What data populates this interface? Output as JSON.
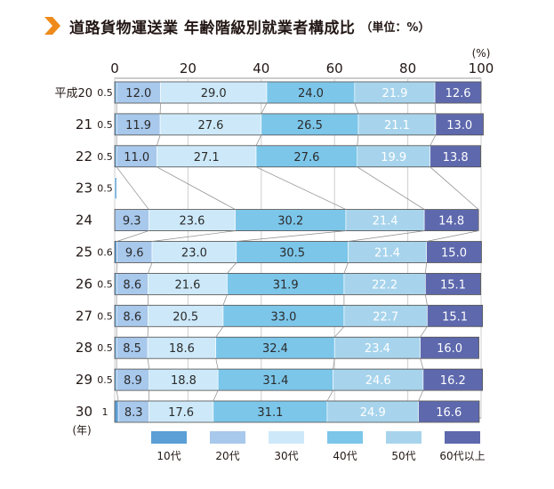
{
  "header": {
    "title": "道路貨物運送業 年齢階級別就業者構成比",
    "subtitle": "（単位：%）"
  },
  "colors": {
    "accent": "#ee8a1a",
    "segments": [
      "#5b9fd6",
      "#a8c8ec",
      "#cde9f9",
      "#7cc6ea",
      "#a7d4ec",
      "#5d68ad"
    ],
    "row_label_light": [
      "#2b2b2b",
      "#2b2b2b",
      "#2b2b2b",
      "#2b2b2b",
      "#ffffff",
      "#ffffff"
    ]
  },
  "chart_data": {
    "type": "bar",
    "orientation": "horizontal",
    "stacked": true,
    "title": "道路貨物運送業 年齢階級別就業者構成比",
    "unit_label": "（単位：%）",
    "axis_unit": "(%)",
    "year_unit": "(年)",
    "xlim": [
      0,
      100
    ],
    "xticks": [
      0,
      20,
      40,
      60,
      80,
      100
    ],
    "categories": [
      "平成20",
      "21",
      "22",
      "23",
      "24",
      "25",
      "26",
      "27",
      "28",
      "29",
      "30"
    ],
    "series": [
      {
        "name": "10代",
        "values": [
          0.5,
          0.5,
          0.5,
          0.5,
          null,
          0.6,
          0.5,
          0.5,
          0.5,
          0.5,
          1
        ]
      },
      {
        "name": "20代",
        "values": [
          12.0,
          11.9,
          11.0,
          null,
          9.3,
          9.6,
          8.6,
          8.6,
          8.5,
          8.9,
          8.3
        ]
      },
      {
        "name": "30代",
        "values": [
          29.0,
          27.6,
          27.1,
          null,
          23.6,
          23.0,
          21.6,
          20.5,
          18.6,
          18.8,
          17.6
        ]
      },
      {
        "name": "40代",
        "values": [
          24.0,
          26.5,
          27.6,
          null,
          30.2,
          30.5,
          31.9,
          33.0,
          32.4,
          31.4,
          31.1
        ]
      },
      {
        "name": "50代",
        "values": [
          21.9,
          21.1,
          19.9,
          null,
          21.4,
          21.4,
          22.2,
          22.7,
          23.4,
          24.6,
          24.9
        ]
      },
      {
        "name": "60代以上",
        "values": [
          12.6,
          13.0,
          13.8,
          null,
          14.8,
          15.0,
          15.1,
          15.1,
          16.0,
          16.2,
          16.6
        ]
      }
    ],
    "value_labels": [
      [
        "0.5",
        "12.0",
        "29.0",
        "24.0",
        "21.9",
        "12.6"
      ],
      [
        "0.5",
        "11.9",
        "27.6",
        "26.5",
        "21.1",
        "13.0"
      ],
      [
        "0.5",
        "11.0",
        "27.1",
        "27.6",
        "19.9",
        "13.8"
      ],
      [
        "0.5",
        "",
        "",
        "",
        "",
        ""
      ],
      [
        "",
        "9.3",
        "23.6",
        "30.2",
        "21.4",
        "14.8"
      ],
      [
        "0.6",
        "9.6",
        "23.0",
        "30.5",
        "21.4",
        "15.0"
      ],
      [
        "0.5",
        "8.6",
        "21.6",
        "31.9",
        "22.2",
        "15.1"
      ],
      [
        "0.5",
        "8.6",
        "20.5",
        "33.0",
        "22.7",
        "15.1"
      ],
      [
        "0.5",
        "8.5",
        "18.6",
        "32.4",
        "23.4",
        "16.0"
      ],
      [
        "0.5",
        "8.9",
        "18.8",
        "31.4",
        "24.6",
        "16.2"
      ],
      [
        "1",
        "8.3",
        "17.6",
        "31.1",
        "24.9",
        "16.6"
      ]
    ],
    "legend": [
      "10代",
      "20代",
      "30代",
      "40代",
      "50代",
      "60代以上"
    ],
    "legend_position": "bottom",
    "grid": true
  }
}
